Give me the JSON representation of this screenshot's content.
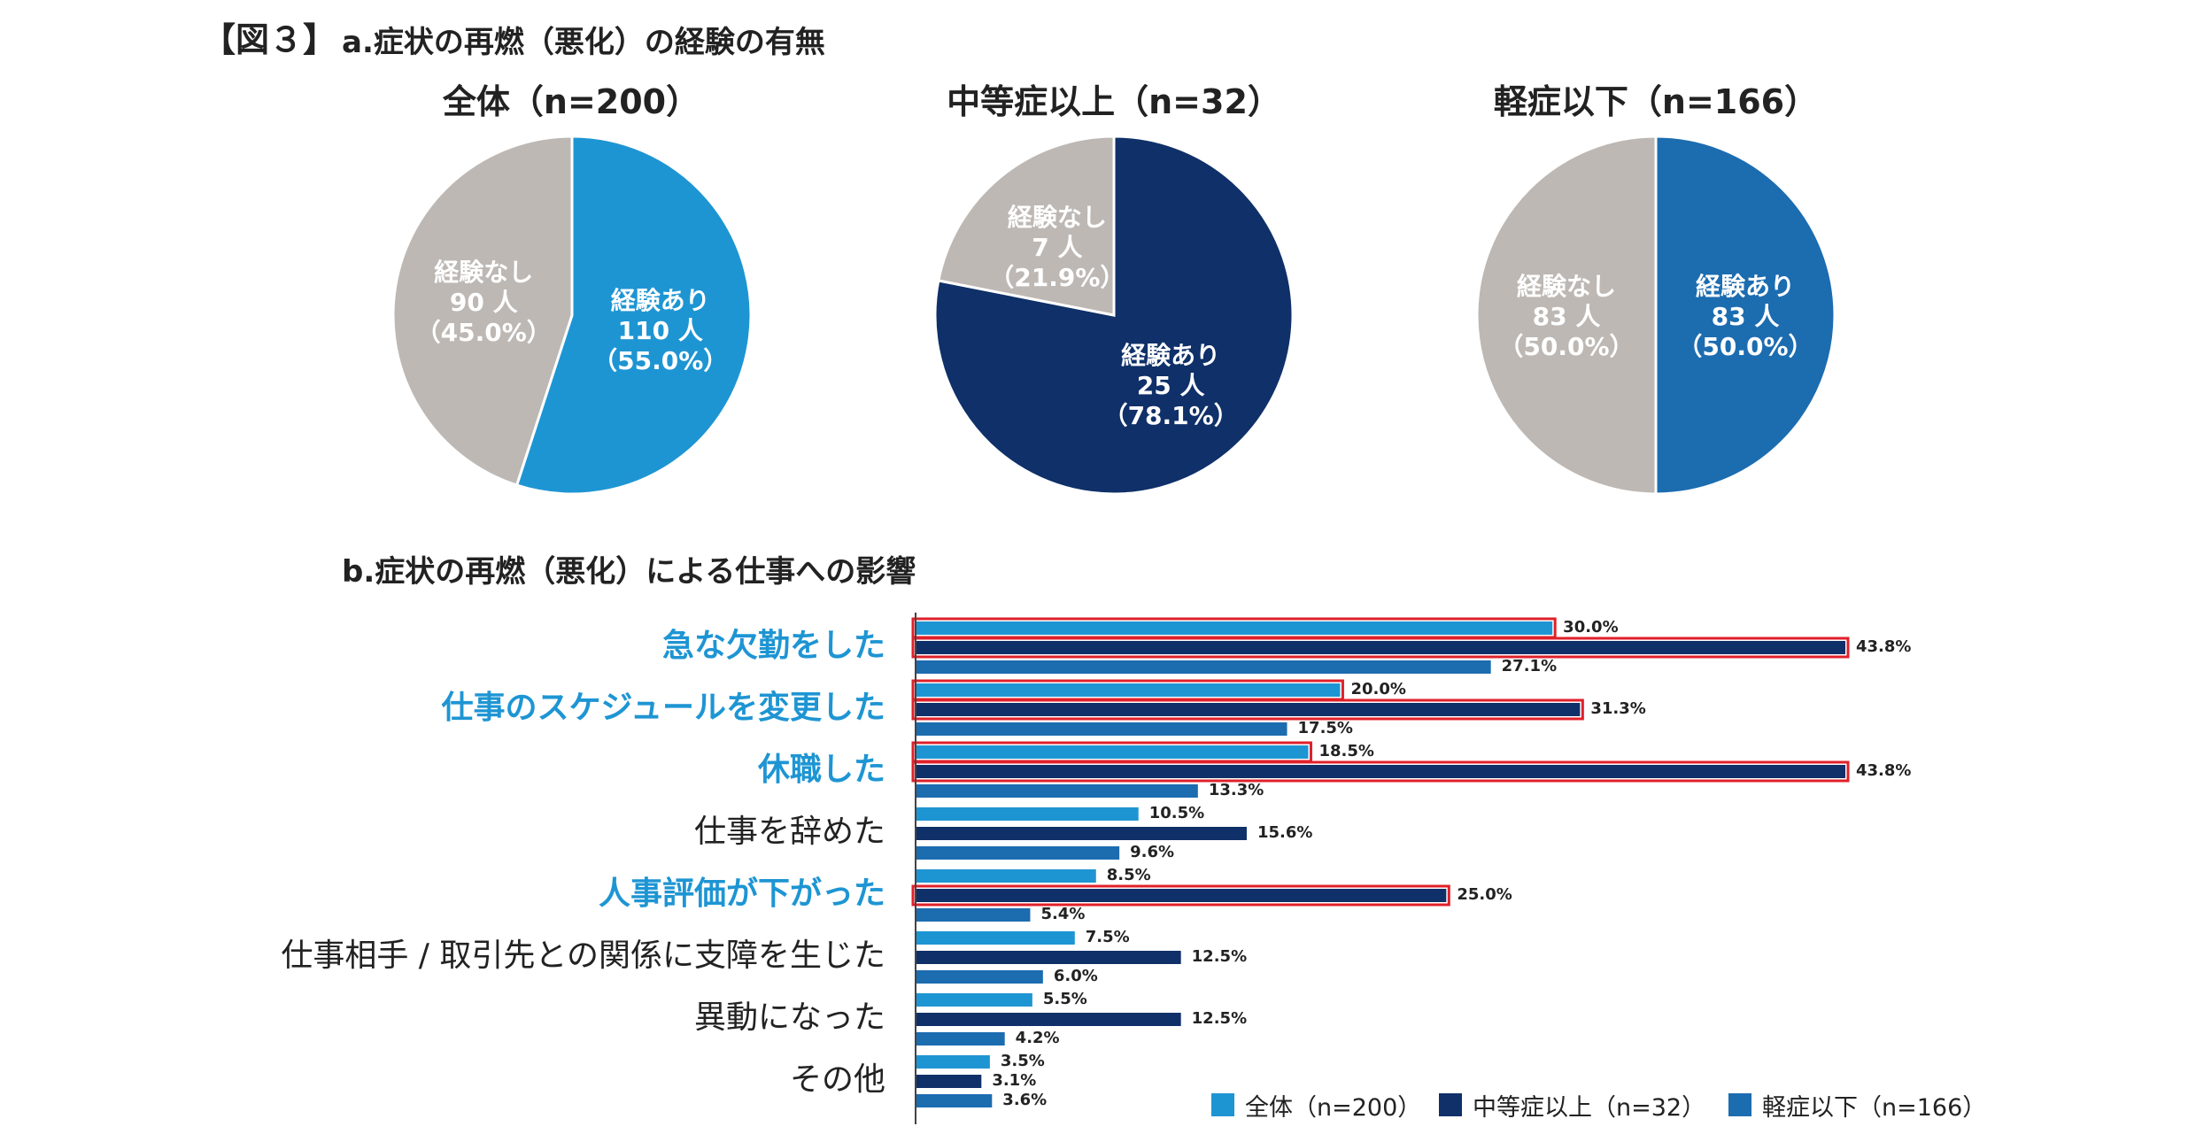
{
  "figure_label": "【図３】",
  "section_a_title": "a.症状の再燃（悪化）の経験の有無",
  "section_b_title": "b.症状の再燃（悪化）による仕事への影響",
  "colors": {
    "all": "#1e95d3",
    "moderate": "#0f3068",
    "mild": "#1c6cb0",
    "none": "#bdb8b4",
    "highlight_border": "#e0202a",
    "highlight_text": "#1e95d3"
  },
  "chart_data": [
    {
      "type": "pie",
      "title": "全体（n=200）",
      "slices": [
        {
          "label": "経験あり",
          "count": "110 人",
          "pct_text": "（55.0%）",
          "value": 55.0,
          "color": "#1e95d3"
        },
        {
          "label": "経験なし",
          "count": "90 人",
          "pct_text": "（45.0%）",
          "value": 45.0,
          "color": "#bdb8b4"
        }
      ]
    },
    {
      "type": "pie",
      "title": "中等症以上（n=32）",
      "slices": [
        {
          "label": "経験あり",
          "count": "25 人",
          "pct_text": "（78.1%）",
          "value": 78.1,
          "color": "#0f3068"
        },
        {
          "label": "経験なし",
          "count": "7 人",
          "pct_text": "（21.9%）",
          "value": 21.9,
          "color": "#bdb8b4"
        }
      ]
    },
    {
      "type": "pie",
      "title": "軽症以下（n=166）",
      "slices": [
        {
          "label": "経験あり",
          "count": "83 人",
          "pct_text": "（50.0%）",
          "value": 50.0,
          "color": "#1c6cb0"
        },
        {
          "label": "経験なし",
          "count": "83 人",
          "pct_text": "（50.0%）",
          "value": 50.0,
          "color": "#bdb8b4"
        }
      ]
    },
    {
      "type": "bar",
      "orientation": "horizontal",
      "xlim": [
        0,
        43.8
      ],
      "categories": [
        {
          "label": "急な欠勤をした",
          "highlight": true
        },
        {
          "label": "仕事のスケジュールを変更した",
          "highlight": true
        },
        {
          "label": "休職した",
          "highlight": true
        },
        {
          "label": "仕事を辞めた",
          "highlight": false
        },
        {
          "label": "人事評価が下がった",
          "highlight": true
        },
        {
          "label": "仕事相手 / 取引先との関係に支障を生じた",
          "highlight": false
        },
        {
          "label": "異動になった",
          "highlight": false
        },
        {
          "label": "その他",
          "highlight": false
        }
      ],
      "series": [
        {
          "name": "全体（n=200）",
          "color": "#1e95d3",
          "values": [
            30.0,
            20.0,
            18.5,
            10.5,
            8.5,
            7.5,
            5.5,
            3.5
          ],
          "labels": [
            "30.0%",
            "20.0%",
            "18.5%",
            "10.5%",
            "8.5%",
            "7.5%",
            "5.5%",
            "3.5%"
          ],
          "highlighted": [
            true,
            true,
            true,
            false,
            false,
            false,
            false,
            false
          ]
        },
        {
          "name": "中等症以上（n=32）",
          "color": "#0f3068",
          "values": [
            43.8,
            31.3,
            43.8,
            15.6,
            25.0,
            12.5,
            12.5,
            3.1
          ],
          "labels": [
            "43.8%",
            "31.3%",
            "43.8%",
            "15.6%",
            "25.0%",
            "12.5%",
            "12.5%",
            "3.1%"
          ],
          "highlighted": [
            true,
            true,
            true,
            false,
            true,
            false,
            false,
            false
          ]
        },
        {
          "name": "軽症以下（n=166）",
          "color": "#1c6cb0",
          "values": [
            27.1,
            17.5,
            13.3,
            9.6,
            5.4,
            6.0,
            4.2,
            3.6
          ],
          "labels": [
            "27.1%",
            "17.5%",
            "13.3%",
            "9.6%",
            "5.4%",
            "6.0%",
            "4.2%",
            "3.6%"
          ],
          "highlighted": [
            false,
            false,
            false,
            false,
            false,
            false,
            false,
            false
          ]
        }
      ],
      "legend_position": "bottom-right"
    }
  ]
}
